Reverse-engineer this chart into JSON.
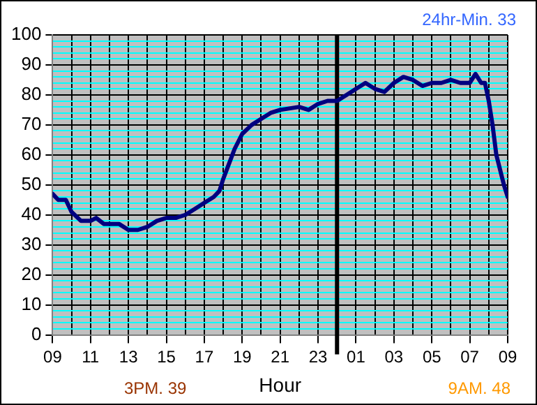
{
  "chart_data": {
    "type": "line",
    "xlabel": "Hour",
    "annotations": [
      "24hr-Min. 33",
      "3PM. 39",
      "9AM. 48"
    ],
    "x": [
      "--01-01T09:00",
      "--01-01T09:18",
      "--01-01T09:42",
      "--01-01T10:00",
      "--01-01T10:30",
      "--01-01T11:00",
      "--01-01T11:18",
      "--01-01T11:42",
      "--01-01T12:30",
      "--01-01T13:00",
      "--01-01T13:30",
      "--01-01T14:00",
      "--01-01T14:30",
      "--01-01T15:00",
      "--01-01T15:30",
      "--01-01T16:00",
      "--01-01T16:30",
      "--01-01T17:00",
      "--01-01T17:30",
      "--01-01T17:48",
      "--01-01T18:00",
      "--01-01T18:18",
      "--01-01T18:36",
      "--01-01T19:00",
      "--01-01T19:30",
      "--01-01T20:00",
      "--01-01T20:30",
      "--01-01T21:00",
      "--01-01T22:00",
      "--01-01T22:30",
      "--01-01T23:00",
      "--01-01T23:30",
      "--01-02T00:00",
      "--01-02T00:30",
      "--01-02T01:00",
      "--01-02T01:30",
      "--01-02T02:00",
      "--01-02T02:30",
      "--01-02T03:00",
      "--01-02T03:30",
      "--01-02T04:00",
      "--01-02T04:30",
      "--01-02T05:00",
      "--01-02T05:30",
      "--01-02T06:00",
      "--01-02T06:30",
      "--01-02T07:00",
      "--01-02T07:18",
      "--01-02T07:36",
      "--01-02T07:48",
      "--01-02T08:00",
      "--01-02T08:12",
      "--01-02T08:24",
      "--01-02T08:36",
      "--01-02T08:48",
      "--01-02T09:00"
    ],
    "series": [
      {
        "color": "#000080",
        "values": [
          47,
          45,
          45,
          41,
          38,
          38,
          39,
          37,
          37,
          35,
          35,
          36,
          38,
          39,
          39,
          40,
          42,
          44,
          46,
          48,
          52,
          57,
          62,
          67,
          70,
          72,
          74,
          75,
          76,
          75,
          77,
          78,
          78,
          80,
          82,
          84,
          82,
          81,
          84,
          86,
          85,
          83,
          84,
          84,
          85,
          84,
          84,
          87,
          84,
          84,
          78,
          70,
          60,
          55,
          50,
          46
        ]
      }
    ],
    "xlim": [
      "--01-01T09:00",
      "--01-02T09:00"
    ],
    "xticks": [
      {
        "value": "--01-01T09:00",
        "label": "09"
      },
      {
        "value": "--01-01T10:00",
        "label": null
      },
      {
        "value": "--01-01T11:00",
        "label": "11"
      },
      {
        "value": "--01-01T12:00",
        "label": null
      },
      {
        "value": "--01-01T13:00",
        "label": "13"
      },
      {
        "value": "--01-01T14:00",
        "label": null
      },
      {
        "value": "--01-01T15:00",
        "label": "15"
      },
      {
        "value": "--01-01T16:00",
        "label": null
      },
      {
        "value": "--01-01T17:00",
        "label": "17"
      },
      {
        "value": "--01-01T18:00",
        "label": null
      },
      {
        "value": "--01-01T19:00",
        "label": "19"
      },
      {
        "value": "--01-01T20:00",
        "label": null
      },
      {
        "value": "--01-01T21:00",
        "label": "21"
      },
      {
        "value": "--01-01T22:00",
        "label": null
      },
      {
        "value": "--01-01T23:00",
        "label": "23"
      },
      {
        "value": "--01-02T00:00",
        "label": null
      },
      {
        "value": "--01-02T01:00",
        "label": "01"
      },
      {
        "value": "--01-02T02:00",
        "label": null
      },
      {
        "value": "--01-02T03:00",
        "label": "03"
      },
      {
        "value": "--01-02T04:00",
        "label": null
      },
      {
        "value": "--01-02T05:00",
        "label": "05"
      },
      {
        "value": "--01-02T06:00",
        "label": null
      },
      {
        "value": "--01-02T07:00",
        "label": "07"
      },
      {
        "value": "--01-02T08:00",
        "label": null
      },
      {
        "value": "--01-02T09:00",
        "label": "09"
      }
    ],
    "ylim": [
      0,
      100
    ],
    "yticks": [
      0,
      {
        "value": 2,
        "label": null
      },
      {
        "value": 4,
        "label": null
      },
      {
        "value": 6,
        "label": null
      },
      {
        "value": 8,
        "label": null
      },
      10,
      {
        "value": 12,
        "label": null
      },
      {
        "value": 14,
        "label": null
      },
      {
        "value": 16,
        "label": null
      },
      {
        "value": 18,
        "label": null
      },
      20,
      {
        "value": 22,
        "label": null
      },
      {
        "value": 24,
        "label": null
      },
      {
        "value": 26,
        "label": null
      },
      {
        "value": 28,
        "label": null
      },
      30,
      {
        "value": 32,
        "label": null
      },
      {
        "value": 34,
        "label": null
      },
      {
        "value": 36,
        "label": null
      },
      {
        "value": 38,
        "label": null
      },
      40,
      {
        "value": 42,
        "label": null
      },
      {
        "value": 44,
        "label": null
      },
      {
        "value": 46,
        "label": null
      },
      {
        "value": 48,
        "label": null
      },
      50,
      {
        "value": 52,
        "label": null
      },
      {
        "value": 54,
        "label": null
      },
      {
        "value": 56,
        "label": null
      },
      {
        "value": 58,
        "label": null
      },
      60,
      {
        "value": 62,
        "label": null
      },
      {
        "value": 64,
        "label": null
      },
      {
        "value": 66,
        "label": null
      },
      {
        "value": 68,
        "label": null
      },
      70,
      {
        "value": 72,
        "label": null
      },
      {
        "value": 74,
        "label": null
      },
      {
        "value": 76,
        "label": null
      },
      {
        "value": 78,
        "label": null
      },
      80,
      {
        "value": 82,
        "label": null
      },
      {
        "value": 84,
        "label": null
      },
      {
        "value": 86,
        "label": null
      },
      {
        "value": 88,
        "label": null
      },
      90,
      {
        "value": 92,
        "label": null
      },
      {
        "value": 94,
        "label": null
      },
      {
        "value": 96,
        "label": null
      },
      {
        "value": 98,
        "label": null
      },
      100
    ],
    "ref_lines": [
      {
        "axis": "x",
        "value": "--01-02T00:00",
        "color": "#000000"
      }
    ],
    "grid": true,
    "legend": false,
    "marker": "none",
    "line_style": "solid"
  }
}
